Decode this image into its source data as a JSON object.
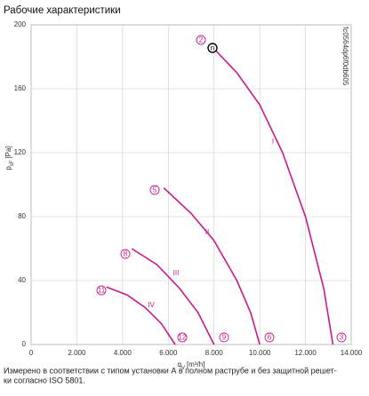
{
  "chart_data": {
    "type": "line",
    "title": "Рабочие характеристики",
    "y_label": {
      "main": "p",
      "sub": "sF",
      "unit": "[Pa]"
    },
    "x_label": {
      "main": "q",
      "sub": "V",
      "unit": "[m³/h]"
    },
    "code": "fc0564dp6f0db605",
    "footnote": [
      "Измерено в соответствии с типом установки А в полном раструбе и без защитной решет-",
      "ки согласно ISO 5801."
    ],
    "xlim": [
      0,
      14000
    ],
    "ylim": [
      0,
      200
    ],
    "xticks": [
      0,
      {
        "value": 2000,
        "label": "2.000"
      },
      {
        "value": 4000,
        "label": "4.000"
      },
      {
        "value": 6000,
        "label": "6.000"
      },
      {
        "value": 8000,
        "label": "8.000"
      },
      {
        "value": 10000,
        "label": "10.000"
      },
      {
        "value": 12000,
        "label": "12.000"
      },
      {
        "value": 14000,
        "label": "14.000"
      }
    ],
    "yticks": [
      0,
      40,
      80,
      120,
      160,
      200
    ],
    "grid": true,
    "series": [
      {
        "name": "I",
        "color": "#c8198a",
        "x": [
          8000,
          9000,
          10000,
          11000,
          12000,
          12800,
          13200
        ],
        "values": [
          185,
          170,
          150,
          120,
          80,
          35,
          0
        ]
      },
      {
        "name": "II",
        "color": "#c8198a",
        "x": [
          5800,
          7000,
          8000,
          9000,
          9600,
          10000
        ],
        "values": [
          98,
          82,
          65,
          40,
          20,
          0
        ]
      },
      {
        "name": "III",
        "color": "#c8198a",
        "x": [
          4400,
          5500,
          6500,
          7300,
          8000
        ],
        "values": [
          60,
          50,
          35,
          20,
          0
        ]
      },
      {
        "name": "IV",
        "color": "#c8198a",
        "x": [
          3300,
          4200,
          5000,
          5700,
          6300
        ],
        "values": [
          36,
          31,
          23,
          13,
          0
        ]
      }
    ],
    "annotations": [
      "2",
      "n",
      "5",
      "8",
      "11",
      "12",
      "9",
      "6",
      "3"
    ]
  }
}
